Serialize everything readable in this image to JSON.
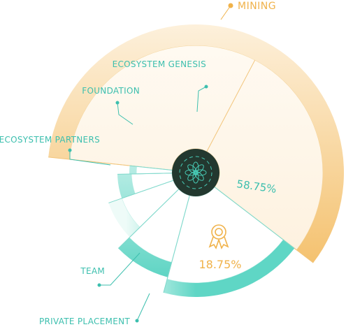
{
  "chart_data": {
    "type": "pie",
    "categories": [
      "MINING",
      "PRIVATE PLACEMENT",
      "TEAM",
      "ECOSYSTEM PARTNERS",
      "FOUNDATION",
      "ECOSYSTEM GENESIS"
    ],
    "values": [
      58.75,
      18.75,
      8.5,
      7,
      5,
      2
    ],
    "data_labels": {
      "MINING": "58.75%",
      "PRIVATE PLACEMENT": "18.75%"
    },
    "legend": "callout-labels",
    "colors": {
      "gold": "#f0b24a",
      "teal": "#3cbfae",
      "hub": "#23382f"
    },
    "icons": {
      "private_placement": "award-icon",
      "hub": "flower-emblem-icon"
    }
  }
}
